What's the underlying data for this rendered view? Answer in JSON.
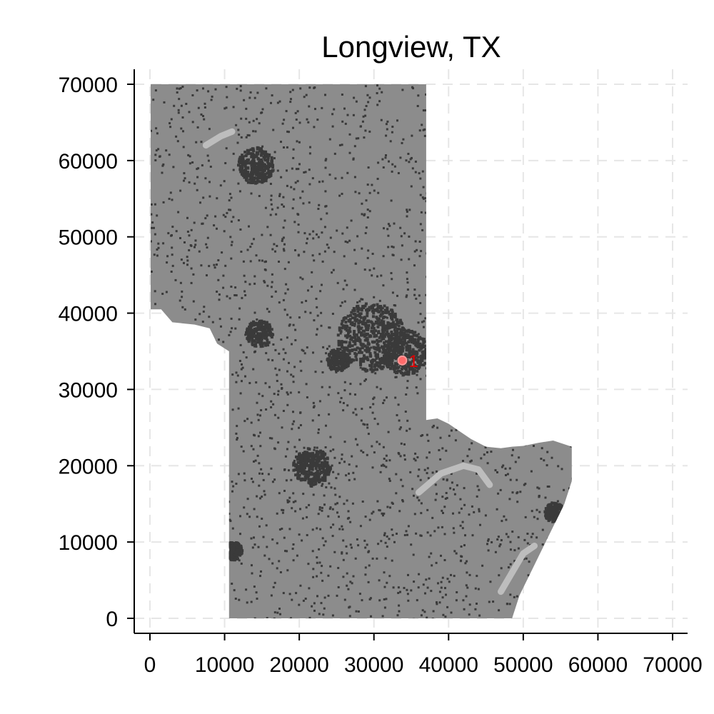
{
  "chart_data": {
    "type": "map",
    "title": "Longview, TX",
    "xlabel": "",
    "ylabel": "",
    "xlim": [
      -2000,
      72000
    ],
    "ylim": [
      -2000,
      72000
    ],
    "xticks": [
      0,
      10000,
      20000,
      30000,
      40000,
      50000,
      60000,
      70000
    ],
    "yticks": [
      0,
      10000,
      20000,
      30000,
      40000,
      50000,
      60000,
      70000
    ],
    "xtick_labels": [
      "0",
      "10000",
      "20000",
      "30000",
      "40000",
      "50000",
      "60000",
      "70000"
    ],
    "ytick_labels": [
      "0",
      "10000",
      "20000",
      "30000",
      "40000",
      "50000",
      "60000",
      "70000"
    ],
    "grid": true,
    "colors": {
      "region": "#8c8c8c",
      "developed": "#3a3a3a",
      "water": "#bdbdbd",
      "marker": "#ff6b6b",
      "marker_label": "#e60000",
      "grid": "#e6e6e6"
    },
    "region_outline": [
      [
        100,
        70000
      ],
      [
        37000,
        70000
      ],
      [
        37000,
        26000
      ],
      [
        38500,
        26200
      ],
      [
        40000,
        25500
      ],
      [
        41500,
        24500
      ],
      [
        43000,
        23500
      ],
      [
        45000,
        22500
      ],
      [
        47000,
        22300
      ],
      [
        48500,
        22500
      ],
      [
        50000,
        22600
      ],
      [
        52000,
        23000
      ],
      [
        54000,
        23300
      ],
      [
        56500,
        22500
      ],
      [
        56500,
        18000
      ],
      [
        55500,
        15000
      ],
      [
        54000,
        12000
      ],
      [
        52500,
        9000
      ],
      [
        51000,
        6000
      ],
      [
        49500,
        3000
      ],
      [
        48500,
        0
      ],
      [
        10600,
        0
      ],
      [
        10600,
        35000
      ],
      [
        9000,
        36000
      ],
      [
        8000,
        38000
      ],
      [
        6000,
        38500
      ],
      [
        3000,
        38800
      ],
      [
        1500,
        40500
      ],
      [
        100,
        40500
      ]
    ],
    "developed_clusters": [
      {
        "x": 14000,
        "y": 59500,
        "r": 2400
      },
      {
        "x": 29500,
        "y": 37000,
        "r": 4500
      },
      {
        "x": 34000,
        "y": 35000,
        "r": 3000
      },
      {
        "x": 21500,
        "y": 20000,
        "r": 2500
      },
      {
        "x": 14500,
        "y": 37500,
        "r": 1800
      },
      {
        "x": 11000,
        "y": 9000,
        "r": 1200
      },
      {
        "x": 54000,
        "y": 14000,
        "r": 1300
      },
      {
        "x": 25000,
        "y": 34000,
        "r": 1500
      }
    ],
    "water_features": [
      {
        "points": [
          [
            7500,
            62000
          ],
          [
            9500,
            63200
          ],
          [
            11000,
            63800
          ]
        ]
      },
      {
        "points": [
          [
            36000,
            16500
          ],
          [
            39000,
            19000
          ],
          [
            42000,
            20000
          ],
          [
            44000,
            19500
          ],
          [
            45500,
            17500
          ]
        ]
      },
      {
        "points": [
          [
            47000,
            3500
          ],
          [
            48500,
            6000
          ],
          [
            50000,
            8500
          ],
          [
            51500,
            9500
          ]
        ]
      }
    ],
    "points": [
      {
        "label": "1",
        "x": 33800,
        "y": 33800
      }
    ]
  }
}
